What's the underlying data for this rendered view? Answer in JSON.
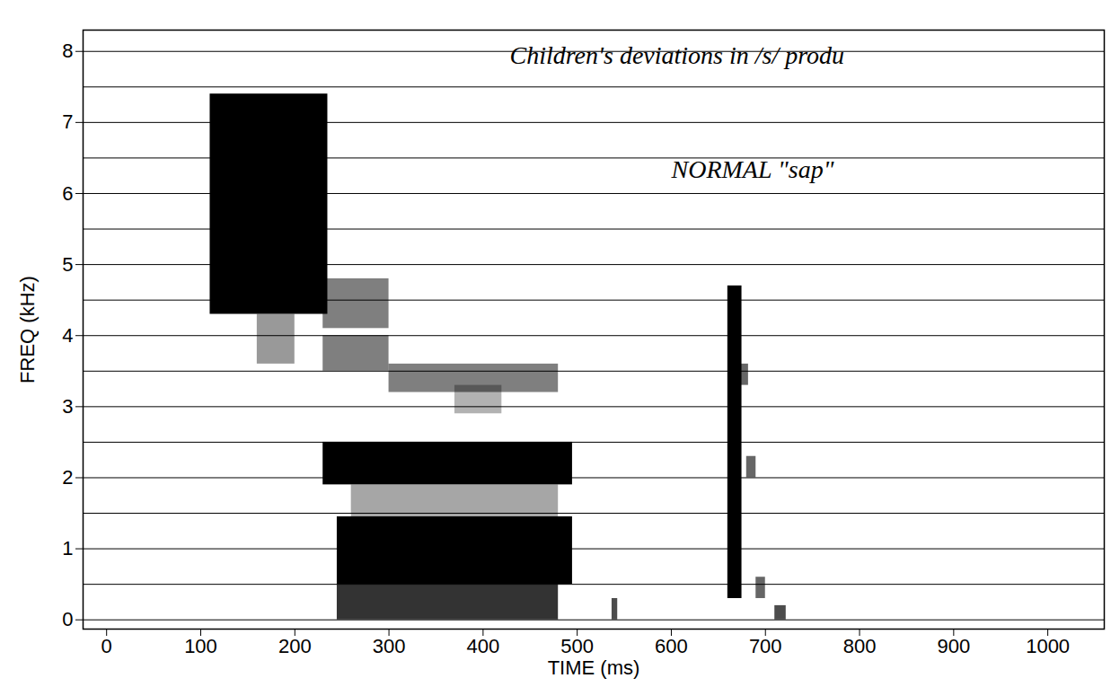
{
  "chart_data": {
    "type": "spectrogram",
    "title": "Children's deviations in /s/ produ",
    "annotations": [
      "NORMAL \"sap\""
    ],
    "x_label": "TIME (ms)",
    "y_label": "FREQ (kHz)",
    "xlim": [
      -25,
      1060
    ],
    "ylim": [
      -0.13,
      8.3
    ],
    "xticks": [
      0,
      100,
      200,
      300,
      400,
      500,
      600,
      700,
      800,
      900,
      1000
    ],
    "yticks": [
      0,
      1,
      2,
      3,
      4,
      5,
      6,
      7,
      8
    ],
    "grid": true,
    "grid_lines": [
      0,
      0.5,
      1,
      1.5,
      2,
      2.5,
      3,
      3.5,
      4,
      4.5,
      5,
      5.5,
      6,
      6.5,
      7,
      7.5,
      8
    ],
    "color": "#000000",
    "regions": [
      {
        "x": [
          110,
          235
        ],
        "y": [
          4.3,
          7.4
        ],
        "level": 1
      },
      {
        "x": [
          120,
          150
        ],
        "y": [
          4.5,
          5.6
        ],
        "level": 1
      },
      {
        "x": [
          230,
          300
        ],
        "y": [
          4.1,
          4.8
        ],
        "level": 0.5
      },
      {
        "x": [
          160,
          200
        ],
        "y": [
          3.6,
          4.3
        ],
        "level": 0.4
      },
      {
        "x": [
          230,
          300
        ],
        "y": [
          3.5,
          4.0
        ],
        "level": 0.5
      },
      {
        "x": [
          300,
          480
        ],
        "y": [
          3.2,
          3.6
        ],
        "level": 0.5
      },
      {
        "x": [
          370,
          420
        ],
        "y": [
          2.9,
          3.3
        ],
        "level": 0.3
      },
      {
        "x": [
          230,
          495
        ],
        "y": [
          1.9,
          2.5
        ],
        "level": 1
      },
      {
        "x": [
          245,
          495
        ],
        "y": [
          0.5,
          1.45
        ],
        "level": 1
      },
      {
        "x": [
          245,
          480
        ],
        "y": [
          0,
          0.5
        ],
        "level": 0.8
      },
      {
        "x": [
          260,
          480
        ],
        "y": [
          1.45,
          1.9
        ],
        "level": 0.35
      },
      {
        "x": [
          660,
          675
        ],
        "y": [
          0.3,
          4.7
        ],
        "level": 1
      },
      {
        "x": [
          672,
          682
        ],
        "y": [
          3.3,
          3.6
        ],
        "level": 0.6
      },
      {
        "x": [
          680,
          690
        ],
        "y": [
          2.0,
          2.3
        ],
        "level": 0.6
      },
      {
        "x": [
          690,
          700
        ],
        "y": [
          0.3,
          0.6
        ],
        "level": 0.6
      },
      {
        "x": [
          537,
          543
        ],
        "y": [
          0,
          0.3
        ],
        "level": 0.7
      },
      {
        "x": [
          710,
          722
        ],
        "y": [
          0,
          0.2
        ],
        "level": 0.7
      }
    ]
  }
}
